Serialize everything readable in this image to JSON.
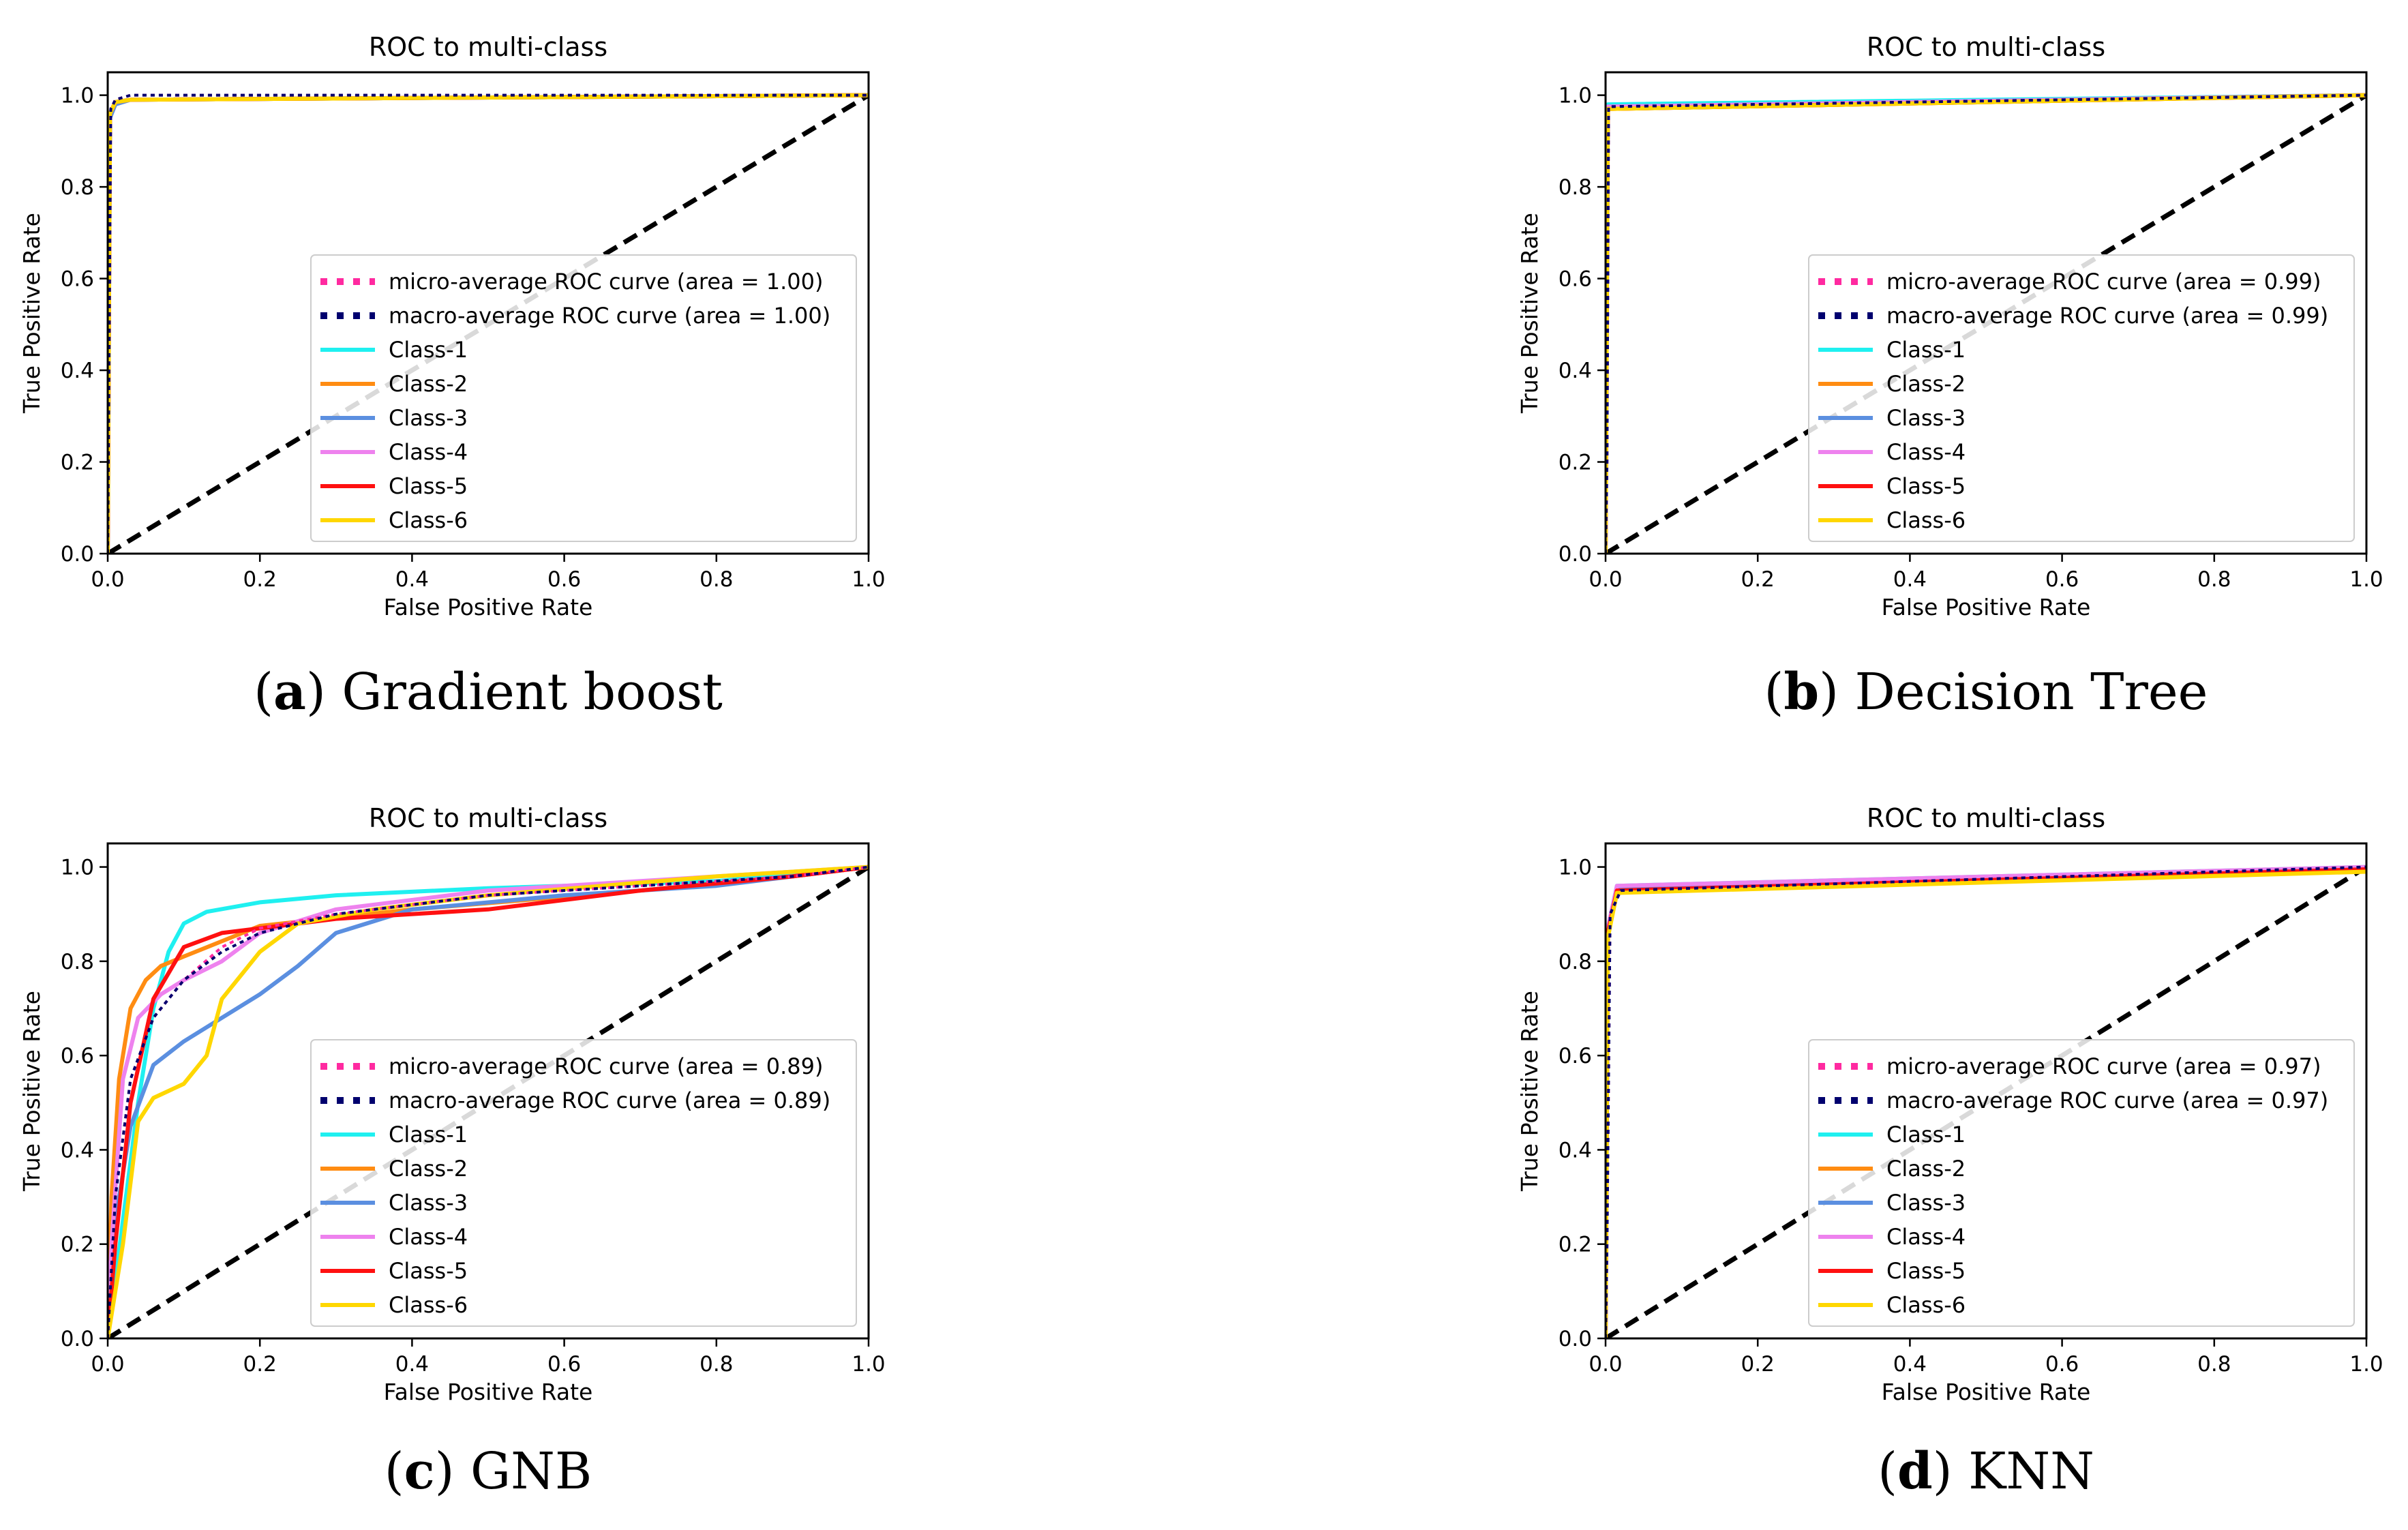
{
  "colors": {
    "micro": "#ff2aa0",
    "macro": "#00006e",
    "Class-1": "#1ff0f0",
    "Class-2": "#ff8c12",
    "Class-3": "#5b8fe0",
    "Class-4": "#ee82ee",
    "Class-5": "#ff1010",
    "Class-6": "#ffd700",
    "diagonal": "#000000"
  },
  "chart_data": [
    {
      "type": "line",
      "title": "ROC to multi-class",
      "xlabel": "False Positive Rate",
      "ylabel": "True Positive Rate",
      "xlim": [
        0.0,
        1.0
      ],
      "ylim": [
        0.0,
        1.05
      ],
      "xticks": [
        "0.0",
        "0.2",
        "0.4",
        "0.6",
        "0.8",
        "1.0"
      ],
      "yticks": [
        "0.0",
        "0.2",
        "0.4",
        "0.6",
        "0.8",
        "1.0"
      ],
      "legend_position": "lower-right",
      "caption": {
        "letter": "a",
        "text": "Gradient boost"
      },
      "series": [
        {
          "name": "micro-average ROC curve (area = 1.00)",
          "key": "micro",
          "style": "dotted",
          "x": [
            0,
            0.004,
            0.01,
            0.03,
            1.0
          ],
          "y": [
            0,
            0.97,
            0.99,
            1.0,
            1.0
          ]
        },
        {
          "name": "macro-average ROC curve (area = 1.00)",
          "key": "macro",
          "style": "dotted",
          "x": [
            0,
            0.004,
            0.01,
            0.03,
            1.0
          ],
          "y": [
            0,
            0.97,
            0.99,
            1.0,
            1.0
          ]
        },
        {
          "name": "Class-1",
          "key": "Class-1",
          "style": "solid",
          "x": [
            0,
            0.003,
            0.01,
            0.03,
            1.0
          ],
          "y": [
            0,
            0.96,
            0.985,
            0.99,
            1.0
          ]
        },
        {
          "name": "Class-2",
          "key": "Class-2",
          "style": "solid",
          "x": [
            0,
            0.003,
            0.01,
            0.03,
            1.0
          ],
          "y": [
            0,
            0.96,
            0.985,
            0.99,
            1.0
          ]
        },
        {
          "name": "Class-3",
          "key": "Class-3",
          "style": "solid",
          "x": [
            0,
            0.003,
            0.01,
            0.03,
            1.0
          ],
          "y": [
            0,
            0.95,
            0.98,
            0.99,
            1.0
          ]
        },
        {
          "name": "Class-4",
          "key": "Class-4",
          "style": "solid",
          "x": [
            0,
            0.003,
            0.01,
            0.03,
            1.0
          ],
          "y": [
            0,
            0.96,
            0.985,
            0.99,
            1.0
          ]
        },
        {
          "name": "Class-5",
          "key": "Class-5",
          "style": "solid",
          "x": [
            0,
            0.003,
            0.01,
            0.03,
            1.0
          ],
          "y": [
            0,
            0.96,
            0.985,
            0.99,
            1.0
          ]
        },
        {
          "name": "Class-6",
          "key": "Class-6",
          "style": "solid",
          "x": [
            0,
            0.003,
            0.01,
            0.03,
            1.0
          ],
          "y": [
            0,
            0.96,
            0.985,
            0.99,
            1.0
          ]
        }
      ]
    },
    {
      "type": "line",
      "title": "ROC to multi-class",
      "xlabel": "False Positive Rate",
      "ylabel": "True Positive Rate",
      "xlim": [
        0.0,
        1.0
      ],
      "ylim": [
        0.0,
        1.05
      ],
      "xticks": [
        "0.0",
        "0.2",
        "0.4",
        "0.6",
        "0.8",
        "1.0"
      ],
      "yticks": [
        "0.0",
        "0.2",
        "0.4",
        "0.6",
        "0.8",
        "1.0"
      ],
      "legend_position": "lower-right",
      "caption": {
        "letter": "b",
        "text": "Decision Tree"
      },
      "series": [
        {
          "name": "micro-average ROC curve (area = 0.99)",
          "key": "micro",
          "style": "dotted",
          "x": [
            0,
            0.002,
            0.004,
            1.0
          ],
          "y": [
            0,
            0.2,
            0.975,
            1.0
          ]
        },
        {
          "name": "macro-average ROC curve (area = 0.99)",
          "key": "macro",
          "style": "dotted",
          "x": [
            0,
            0.002,
            0.004,
            1.0
          ],
          "y": [
            0,
            0.2,
            0.975,
            1.0
          ]
        },
        {
          "name": "Class-1",
          "key": "Class-1",
          "style": "solid",
          "x": [
            0,
            0.003,
            1.0
          ],
          "y": [
            0,
            0.98,
            1.0
          ]
        },
        {
          "name": "Class-2",
          "key": "Class-2",
          "style": "solid",
          "x": [
            0,
            0.003,
            1.0
          ],
          "y": [
            0,
            0.97,
            1.0
          ]
        },
        {
          "name": "Class-3",
          "key": "Class-3",
          "style": "solid",
          "x": [
            0,
            0.003,
            1.0
          ],
          "y": [
            0,
            0.975,
            1.0
          ]
        },
        {
          "name": "Class-4",
          "key": "Class-4",
          "style": "solid",
          "x": [
            0,
            0.003,
            1.0
          ],
          "y": [
            0,
            0.975,
            1.0
          ]
        },
        {
          "name": "Class-5",
          "key": "Class-5",
          "style": "solid",
          "x": [
            0,
            0.003,
            1.0
          ],
          "y": [
            0,
            0.97,
            1.0
          ]
        },
        {
          "name": "Class-6",
          "key": "Class-6",
          "style": "solid",
          "x": [
            0,
            0.003,
            1.0
          ],
          "y": [
            0,
            0.97,
            1.0
          ]
        }
      ]
    },
    {
      "type": "line",
      "title": "ROC to multi-class",
      "xlabel": "False Positive Rate",
      "ylabel": "True Positive Rate",
      "xlim": [
        0.0,
        1.0
      ],
      "ylim": [
        0.0,
        1.05
      ],
      "xticks": [
        "0.0",
        "0.2",
        "0.4",
        "0.6",
        "0.8",
        "1.0"
      ],
      "yticks": [
        "0.0",
        "0.2",
        "0.4",
        "0.6",
        "0.8",
        "1.0"
      ],
      "legend_position": "lower-right",
      "caption": {
        "letter": "c",
        "text": "GNB"
      },
      "series": [
        {
          "name": "micro-average ROC curve (area = 0.89)",
          "key": "micro",
          "style": "dotted",
          "x": [
            0,
            0.01,
            0.03,
            0.06,
            0.1,
            0.15,
            0.2,
            0.3,
            0.5,
            0.7,
            0.9,
            1.0
          ],
          "y": [
            0,
            0.3,
            0.55,
            0.68,
            0.76,
            0.83,
            0.87,
            0.9,
            0.94,
            0.96,
            0.98,
            1.0
          ]
        },
        {
          "name": "macro-average ROC curve (area = 0.89)",
          "key": "macro",
          "style": "dotted",
          "x": [
            0,
            0.01,
            0.03,
            0.06,
            0.1,
            0.15,
            0.2,
            0.3,
            0.5,
            0.7,
            0.9,
            1.0
          ],
          "y": [
            0,
            0.3,
            0.55,
            0.68,
            0.76,
            0.82,
            0.86,
            0.9,
            0.94,
            0.96,
            0.98,
            1.0
          ]
        },
        {
          "name": "Class-1",
          "key": "Class-1",
          "style": "solid",
          "x": [
            0,
            0.02,
            0.04,
            0.06,
            0.08,
            0.1,
            0.13,
            0.2,
            0.3,
            0.5,
            0.8,
            1.0
          ],
          "y": [
            0,
            0.25,
            0.5,
            0.7,
            0.82,
            0.88,
            0.905,
            0.925,
            0.94,
            0.955,
            0.97,
            1.0
          ]
        },
        {
          "name": "Class-2",
          "key": "Class-2",
          "style": "solid",
          "x": [
            0,
            0.005,
            0.015,
            0.03,
            0.05,
            0.07,
            0.1,
            0.2,
            0.4,
            0.7,
            0.9,
            1.0
          ],
          "y": [
            0,
            0.3,
            0.55,
            0.7,
            0.76,
            0.79,
            0.81,
            0.875,
            0.91,
            0.95,
            0.98,
            1.0
          ]
        },
        {
          "name": "Class-3",
          "key": "Class-3",
          "style": "solid",
          "x": [
            0,
            0.01,
            0.03,
            0.06,
            0.1,
            0.15,
            0.2,
            0.25,
            0.3,
            0.4,
            0.6,
            0.8,
            1.0
          ],
          "y": [
            0,
            0.25,
            0.45,
            0.58,
            0.63,
            0.68,
            0.73,
            0.79,
            0.86,
            0.91,
            0.94,
            0.96,
            1.0
          ]
        },
        {
          "name": "Class-4",
          "key": "Class-4",
          "style": "solid",
          "x": [
            0,
            0.005,
            0.02,
            0.04,
            0.07,
            0.1,
            0.15,
            0.2,
            0.3,
            0.5,
            0.7,
            1.0
          ],
          "y": [
            0,
            0.2,
            0.55,
            0.68,
            0.73,
            0.76,
            0.8,
            0.86,
            0.91,
            0.95,
            0.97,
            1.0
          ]
        },
        {
          "name": "Class-5",
          "key": "Class-5",
          "style": "solid",
          "x": [
            0,
            0.01,
            0.03,
            0.06,
            0.1,
            0.15,
            0.2,
            0.3,
            0.5,
            0.7,
            0.9,
            1.0
          ],
          "y": [
            0,
            0.2,
            0.5,
            0.72,
            0.83,
            0.86,
            0.87,
            0.89,
            0.91,
            0.95,
            0.98,
            1.0
          ]
        },
        {
          "name": "Class-6",
          "key": "Class-6",
          "style": "solid",
          "x": [
            0,
            0.02,
            0.04,
            0.06,
            0.1,
            0.13,
            0.15,
            0.2,
            0.25,
            0.35,
            0.5,
            0.8,
            1.0
          ],
          "y": [
            0,
            0.2,
            0.46,
            0.51,
            0.54,
            0.6,
            0.72,
            0.82,
            0.88,
            0.91,
            0.94,
            0.98,
            1.0
          ]
        }
      ]
    },
    {
      "type": "line",
      "title": "ROC to multi-class",
      "xlabel": "False Positive Rate",
      "ylabel": "True Positive Rate",
      "xlim": [
        0.0,
        1.0
      ],
      "ylim": [
        0.0,
        1.05
      ],
      "xticks": [
        "0.0",
        "0.2",
        "0.4",
        "0.6",
        "0.8",
        "1.0"
      ],
      "yticks": [
        "0.0",
        "0.2",
        "0.4",
        "0.6",
        "0.8",
        "1.0"
      ],
      "legend_position": "lower-right",
      "caption": {
        "letter": "d",
        "text": "KNN"
      },
      "series": [
        {
          "name": "micro-average ROC curve (area = 0.97)",
          "key": "micro",
          "style": "dotted",
          "x": [
            0,
            0.002,
            0.006,
            0.02,
            1.0
          ],
          "y": [
            0,
            0.2,
            0.9,
            0.95,
            1.0
          ]
        },
        {
          "name": "macro-average ROC curve (area = 0.97)",
          "key": "macro",
          "style": "dotted",
          "x": [
            0,
            0.002,
            0.006,
            0.02,
            1.0
          ],
          "y": [
            0,
            0.2,
            0.9,
            0.95,
            1.0
          ]
        },
        {
          "name": "Class-1",
          "key": "Class-1",
          "style": "solid",
          "x": [
            0,
            0.003,
            0.015,
            1.0
          ],
          "y": [
            0,
            0.87,
            0.96,
            1.0
          ]
        },
        {
          "name": "Class-2",
          "key": "Class-2",
          "style": "solid",
          "x": [
            0,
            0.003,
            0.015,
            1.0
          ],
          "y": [
            0,
            0.86,
            0.95,
            0.995
          ]
        },
        {
          "name": "Class-3",
          "key": "Class-3",
          "style": "solid",
          "x": [
            0,
            0.003,
            0.015,
            1.0
          ],
          "y": [
            0,
            0.86,
            0.955,
            0.995
          ]
        },
        {
          "name": "Class-4",
          "key": "Class-4",
          "style": "solid",
          "x": [
            0,
            0.003,
            0.015,
            1.0
          ],
          "y": [
            0,
            0.87,
            0.96,
            1.0
          ]
        },
        {
          "name": "Class-5",
          "key": "Class-5",
          "style": "solid",
          "x": [
            0,
            0.003,
            0.015,
            1.0
          ],
          "y": [
            0,
            0.86,
            0.95,
            0.995
          ]
        },
        {
          "name": "Class-6",
          "key": "Class-6",
          "style": "solid",
          "x": [
            0,
            0.003,
            0.015,
            1.0
          ],
          "y": [
            0,
            0.85,
            0.945,
            0.99
          ]
        }
      ]
    }
  ]
}
